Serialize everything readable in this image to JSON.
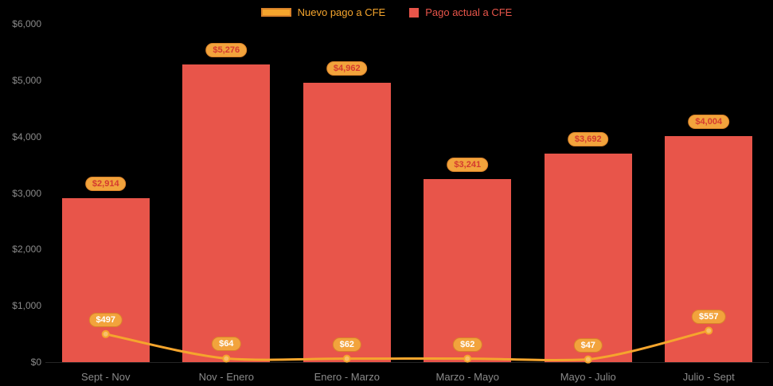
{
  "colors": {
    "background": "#000000",
    "bar": "#e8554a",
    "line": "#f5a52d",
    "pill_bg": "#f2a33c",
    "pill_border": "#d9822a",
    "bar_pill_text": "#d43a2f",
    "axis_text": "#8a8a8a"
  },
  "legend": [
    {
      "label": "Nuevo pago a CFE",
      "series_type": "line",
      "color": "#f5a52d"
    },
    {
      "label": "Pago actual a CFE",
      "series_type": "bar",
      "color": "#e8554a"
    }
  ],
  "chart_data": {
    "type": "bar",
    "title": "",
    "xlabel": "",
    "ylabel": "",
    "ylim": [
      0,
      6000
    ],
    "grid": false,
    "legend_position": "top",
    "categories": [
      "Sept - Nov",
      "Nov - Enero",
      "Enero - Marzo",
      "Marzo - Mayo",
      "Mayo - Julio",
      "Julio - Sept"
    ],
    "y_ticks": [
      "$0",
      "$1,000",
      "$2,000",
      "$3,000",
      "$4,000",
      "$5,000",
      "$6,000"
    ],
    "series": [
      {
        "name": "Pago actual a CFE",
        "type": "bar",
        "values": [
          2914,
          5276,
          4962,
          3241,
          3692,
          4004
        ],
        "labels": [
          "$2,914",
          "$5,276",
          "$4,962",
          "$3,241",
          "$3,692",
          "$4,004"
        ]
      },
      {
        "name": "Nuevo pago a CFE",
        "type": "line",
        "values": [
          497,
          64,
          62,
          62,
          47,
          557
        ],
        "labels": [
          "$497",
          "$64",
          "$62",
          "$62",
          "$47",
          "$557"
        ]
      }
    ]
  }
}
